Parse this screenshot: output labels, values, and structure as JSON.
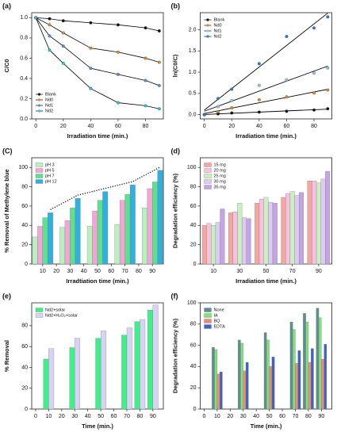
{
  "chart_data": [
    {
      "type": "line",
      "title": "(a)",
      "xlabel": "Irradiation time (min.)",
      "ylabel": "C/C0",
      "x": [
        0,
        10,
        20,
        40,
        60,
        80,
        90
      ],
      "xlim": [
        -3,
        93
      ],
      "xticks": [
        0,
        20,
        40,
        60,
        80
      ],
      "ylim": [
        0,
        1.05
      ],
      "yticks": [
        {
          "value": 0,
          "label": "0.0"
        },
        0.2,
        0.4,
        0.6,
        0.8,
        {
          "value": 1,
          "label": "1.0"
        }
      ],
      "line_color": "#000000",
      "legend": "lower left",
      "series": [
        {
          "name": "Blank",
          "color": "#111111",
          "values": [
            1.0,
            0.99,
            0.97,
            0.95,
            0.93,
            0.9,
            0.87
          ]
        },
        {
          "name": "Nd0",
          "color": "#e08a2c",
          "values": [
            1.0,
            0.93,
            0.85,
            0.7,
            0.66,
            0.6,
            0.56
          ]
        },
        {
          "name": "Nd1",
          "color": "#5b8fd6",
          "values": [
            1.0,
            0.82,
            0.72,
            0.5,
            0.44,
            0.38,
            0.33
          ]
        },
        {
          "name": "Nd2",
          "color": "#2ec4d6",
          "values": [
            1.0,
            0.68,
            0.55,
            0.3,
            0.16,
            0.13,
            0.1
          ]
        }
      ]
    },
    {
      "type": "scatter",
      "title": "(b)",
      "xlabel": "Irradiation time (min.)",
      "ylabel": "ln(C0/C)",
      "x": [
        0,
        10,
        20,
        40,
        60,
        80,
        90
      ],
      "xlim": [
        -3,
        93
      ],
      "xticks": [
        0,
        20,
        40,
        60,
        80
      ],
      "ylim": [
        -0.1,
        2.4
      ],
      "yticks": [
        {
          "value": 0,
          "label": "0.0"
        },
        0.5,
        {
          "value": 1,
          "label": "1.0"
        },
        1.5,
        {
          "value": 2,
          "label": "2.0"
        }
      ],
      "line_color": "#000000",
      "fit": true,
      "legend": "upper left",
      "series": [
        {
          "name": "Blank",
          "color": "#111111",
          "values": [
            0,
            0.02,
            0.04,
            0.06,
            0.08,
            0.11,
            0.14
          ]
        },
        {
          "name": "Nd0",
          "color": "#e08a2c",
          "values": [
            0,
            0.07,
            0.16,
            0.35,
            0.42,
            0.51,
            0.58
          ]
        },
        {
          "name": "Nd1",
          "color": "#8fc9e8",
          "values": [
            0,
            0.19,
            0.33,
            0.69,
            0.82,
            0.98,
            1.1
          ]
        },
        {
          "name": "Nd2",
          "color": "#2b7bd6",
          "values": [
            0,
            0.38,
            0.6,
            1.2,
            1.84,
            2.04,
            2.3
          ]
        }
      ]
    },
    {
      "type": "bar",
      "title": "(C)",
      "xlabel": "Irradtiation time (min.)",
      "ylabel": "% Removal of Methylene blue",
      "x": [
        10,
        30,
        50,
        70,
        90
      ],
      "xlim": [
        2,
        98
      ],
      "xticks": [
        10,
        20,
        30,
        40,
        50,
        60,
        70,
        80,
        90
      ],
      "group_width": 15,
      "ylim": [
        0,
        110
      ],
      "yticks": [
        0,
        20,
        40,
        60,
        80,
        100
      ],
      "trend": true,
      "legend": "upper left",
      "series": [
        {
          "name": "pH 3",
          "color": "#b8f0c0",
          "values": [
            28,
            38,
            39,
            41,
            58
          ]
        },
        {
          "name": "pH 5",
          "color": "#f2a6d6",
          "values": [
            39,
            45,
            55,
            66,
            78
          ]
        },
        {
          "name": "pH 7",
          "color": "#5fe08e",
          "values": [
            48,
            58,
            66,
            72,
            85
          ]
        },
        {
          "name": "pH 12",
          "color": "#2fb0e0",
          "values": [
            53,
            68,
            75,
            82,
            97
          ]
        }
      ]
    },
    {
      "type": "bar",
      "title": "(d)",
      "xlabel": "Irradiation time (min.)",
      "ylabel": "Degradation efficiency (%)",
      "categories": [
        "10",
        "30",
        "50",
        "70",
        "90"
      ],
      "ylim": [
        0,
        110
      ],
      "yticks": [
        0,
        20,
        40,
        60,
        80,
        100
      ],
      "legend": "upper left",
      "series": [
        {
          "name": "15 mg",
          "color": "#f4a6a0",
          "values": [
            40,
            53,
            63,
            69,
            86
          ]
        },
        {
          "name": "20 mg",
          "color": "#f6c2e0",
          "values": [
            42,
            54,
            67,
            73,
            86
          ]
        },
        {
          "name": "25 mg",
          "color": "#c8f0c0",
          "values": [
            40,
            63,
            69,
            75,
            84
          ]
        },
        {
          "name": "30 mg",
          "color": "#dccbf2",
          "values": [
            43,
            48,
            64,
            71,
            88
          ]
        },
        {
          "name": "35 mg",
          "color": "#c4a4e2",
          "values": [
            57,
            47,
            63,
            74,
            96
          ]
        }
      ]
    },
    {
      "type": "bar",
      "title": "(e)",
      "xlabel": "Time (min.)",
      "ylabel": "% Removal",
      "x": [
        10,
        30,
        50,
        70,
        80,
        90
      ],
      "xlim": [
        -3,
        98
      ],
      "xticks": [
        0,
        10,
        20,
        30,
        40,
        50,
        60,
        70,
        80,
        90
      ],
      "group_width": 8,
      "ylim": [
        0,
        102
      ],
      "yticks": [
        0,
        20,
        40,
        60,
        80
      ],
      "legend": "upper left",
      "series": [
        {
          "name": "Nd2+solar",
          "color": "#3ef08a",
          "values": [
            48,
            59,
            68,
            71,
            84,
            95
          ]
        },
        {
          "name": "Nd2+H₂O₂+solar",
          "color": "#d8d2f6",
          "values": [
            58,
            68,
            75,
            78,
            86,
            100
          ]
        }
      ]
    },
    {
      "type": "bar",
      "title": "(f)",
      "xlabel": "Time (min.)",
      "ylabel": "Degradation efficiency (%)",
      "x": [
        10,
        30,
        50,
        70,
        80,
        90
      ],
      "xlim": [
        -3,
        98
      ],
      "xticks": [
        0,
        10,
        20,
        30,
        40,
        50,
        60,
        70,
        80,
        90
      ],
      "group_width": 8,
      "ylim": [
        0,
        100
      ],
      "yticks": [
        0,
        20,
        40,
        60,
        80,
        100
      ],
      "legend": "upper left",
      "series": [
        {
          "name": "None",
          "color": "#5f8f8c",
          "values": [
            58,
            65,
            72,
            82,
            90,
            95
          ]
        },
        {
          "name": "IA",
          "color": "#7ee27e",
          "values": [
            56,
            62,
            65,
            75,
            82,
            86
          ]
        },
        {
          "name": "BQ",
          "color": "#f08a76",
          "values": [
            33,
            36,
            40,
            43,
            44,
            47
          ]
        },
        {
          "name": "EDTA",
          "color": "#3c64c4",
          "values": [
            35,
            44,
            49,
            55,
            57,
            61
          ]
        }
      ]
    }
  ]
}
